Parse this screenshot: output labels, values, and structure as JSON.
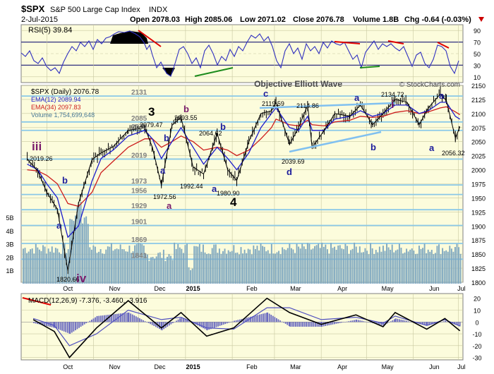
{
  "header": {
    "symbol": "$SPX",
    "name": "S&P 500 Large Cap Index",
    "exchange": "INDX",
    "date": "2-Jul-2015",
    "open": "Open 2078.03",
    "high": "High 2085.06",
    "low": "Low 2071.02",
    "close": "Close 2076.78",
    "volume": "Volume 1.8B",
    "change": "Chg -0.64 (-0.03%)",
    "branding": "Objective Elliott Wave",
    "copyright": "© StockCharts.com"
  },
  "rsi": {
    "label": "RSI(5) 39.84",
    "ticks": [
      "90",
      "70",
      "50",
      "30",
      "10"
    ]
  },
  "main": {
    "legend": [
      "$SPX (Daily) 2076.78",
      "EMA(12) 2089.94",
      "EMA(34) 2097.83",
      "Volume 1,754,699,648"
    ],
    "price_ticks": [
      "2150",
      "2125",
      "2100",
      "2075",
      "2050",
      "2025",
      "2000",
      "1975",
      "1950",
      "1925",
      "1900",
      "1875",
      "1850",
      "1825",
      "1800"
    ],
    "volume_ticks": [
      "5B",
      "4B",
      "3B",
      "2B",
      "1B"
    ],
    "support_labels": [
      "2131",
      "2085",
      "2070",
      "2019",
      "1973",
      "1956",
      "1929",
      "1901",
      "1869",
      "1841"
    ],
    "price_labels": [
      "2019.26",
      "2079.47",
      "2093.55",
      "2064.62",
      "1972.56",
      "1992.44",
      "1980.90",
      "2119.59",
      "2114.86",
      "2039.69",
      "2134.72",
      "2056.32",
      "1820.66"
    ],
    "waves": [
      "iii",
      "iv",
      "3",
      "4",
      "i",
      "a",
      "b",
      "a",
      "b",
      "a",
      "b",
      "a",
      "b",
      "c",
      "d",
      "a",
      "b",
      "a"
    ]
  },
  "macd": {
    "label": "MACD(12,26,9) -7.376, -3.460, -3.916",
    "ticks": [
      "20",
      "10",
      "0",
      "-10",
      "-20",
      "-30"
    ]
  },
  "x_axis": [
    "Oct",
    "Nov",
    "Dec",
    "2015",
    "Feb",
    "Mar",
    "Apr",
    "May",
    "Jun",
    "Jul"
  ],
  "colors": {
    "panel_bg": "#fcfcdc",
    "grid": "#c8c8a0",
    "price": "#000000",
    "ema12": "#1c1ccc",
    "ema34": "#cc1c1c",
    "volume": "#7fa8c0",
    "support": "#8ac8e8",
    "rsi_line": "#3030c0",
    "wave_blue": "#1c1c9c",
    "wave_purple": "#7a1c6c",
    "trend_red": "#e00000",
    "trend_green": "#1c8c1c",
    "trend_blue": "#80c0f0",
    "macd_hist": "#6a6ac0"
  },
  "chart_data": [
    {
      "type": "line",
      "title": "RSI(5)",
      "x": [
        "2014-09-22",
        "2014-10-13",
        "2014-11-03",
        "2014-11-21",
        "2014-12-16",
        "2015-01-05",
        "2015-02-02",
        "2015-03-02",
        "2015-03-23",
        "2015-04-14",
        "2015-05-07",
        "2015-05-21",
        "2015-06-04",
        "2015-06-23",
        "2015-07-02"
      ],
      "y": [
        25,
        28,
        88,
        72,
        20,
        45,
        60,
        78,
        28,
        72,
        45,
        77,
        30,
        78,
        39.84
      ],
      "ylim": [
        0,
        100
      ],
      "reference_lines": [
        70,
        50,
        30
      ]
    },
    {
      "type": "line",
      "title": "$SPX (Daily) 2076.78",
      "ylim": [
        1800,
        2150
      ],
      "x": [
        "2014-09-18",
        "2014-09-25",
        "2014-10-01",
        "2014-10-08",
        "2014-10-15",
        "2014-10-22",
        "2014-10-31",
        "2014-11-06",
        "2014-11-14",
        "2014-11-24",
        "2014-12-05",
        "2014-12-10",
        "2014-12-16",
        "2014-12-23",
        "2014-12-29",
        "2015-01-06",
        "2015-01-13",
        "2015-01-22",
        "2015-01-29",
        "2015-02-04",
        "2015-02-12",
        "2015-02-20",
        "2015-02-27",
        "2015-03-02",
        "2015-03-11",
        "2015-03-17",
        "2015-03-23",
        "2015-03-26",
        "2015-04-03",
        "2015-04-10",
        "2015-04-20",
        "2015-04-27",
        "2015-05-05",
        "2015-05-12",
        "2015-05-20",
        "2015-05-28",
        "2015-06-05",
        "2015-06-11",
        "2015-06-19",
        "2015-06-23",
        "2015-06-29",
        "2015-07-02"
      ],
      "series": [
        {
          "name": "$SPX",
          "values": [
            2019.26,
            1998,
            1960,
            1930,
            1820.66,
            1940,
            2018,
            2030,
            2041,
            2070,
            2075,
            2040,
            1972.56,
            2079,
            2093.55,
            2005,
            1992.44,
            2064.62,
            2000,
            1980.9,
            2050,
            2100,
            2105,
            2119.59,
            2045,
            2075,
            2114.86,
            2039.69,
            2070,
            2100,
            2095,
            2115,
            2080,
            2100,
            2125,
            2120,
            2080,
            2110,
            2134.72,
            2123,
            2056.32,
            2076.78
          ]
        },
        {
          "name": "EMA(12)",
          "values": [
            2010,
            2000,
            1975,
            1950,
            1880,
            1900,
            1980,
            2020,
            2035,
            2060,
            2070,
            2055,
            2020,
            2050,
            2075,
            2040,
            2010,
            2040,
            2020,
            2000,
            2030,
            2075,
            2100,
            2110,
            2075,
            2070,
            2095,
            2070,
            2070,
            2090,
            2095,
            2105,
            2095,
            2100,
            2115,
            2115,
            2100,
            2105,
            2120,
            2120,
            2095,
            2089.94
          ]
        },
        {
          "name": "EMA(34)",
          "values": [
            2000,
            1998,
            1990,
            1975,
            1940,
            1935,
            1960,
            1995,
            2015,
            2040,
            2055,
            2055,
            2040,
            2050,
            2060,
            2050,
            2035,
            2040,
            2035,
            2025,
            2035,
            2055,
            2075,
            2090,
            2080,
            2078,
            2088,
            2080,
            2078,
            2085,
            2088,
            2095,
            2093,
            2095,
            2102,
            2105,
            2100,
            2103,
            2110,
            2112,
            2103,
            2097.83
          ]
        }
      ]
    },
    {
      "type": "bar",
      "title": "MACD(12,26,9)",
      "x": [
        "2014-09-22",
        "2014-10-06",
        "2014-10-16",
        "2014-11-03",
        "2014-11-24",
        "2014-12-16",
        "2014-12-29",
        "2015-01-15",
        "2015-02-02",
        "2015-02-24",
        "2015-03-11",
        "2015-04-01",
        "2015-04-24",
        "2015-05-12",
        "2015-05-20",
        "2015-06-10",
        "2015-06-22",
        "2015-07-02"
      ],
      "series": [
        {
          "name": "MACD",
          "values": [
            2,
            -8,
            -30,
            -5,
            18,
            -5,
            8,
            -12,
            -5,
            20,
            8,
            -2,
            6,
            -4,
            8,
            -6,
            3,
            -7.376
          ]
        },
        {
          "name": "Signal",
          "values": [
            3,
            -3,
            -20,
            -10,
            10,
            2,
            4,
            -5,
            -6,
            12,
            12,
            2,
            4,
            -1,
            5,
            -3,
            2,
            -3.46
          ]
        },
        {
          "name": "Histogram",
          "values": [
            -1,
            -5,
            -10,
            5,
            8,
            -7,
            4,
            -7,
            1,
            8,
            -4,
            -4,
            2,
            -3,
            3,
            -3,
            1,
            -3.916
          ]
        }
      ],
      "ylim": [
        -30,
        20
      ]
    }
  ]
}
